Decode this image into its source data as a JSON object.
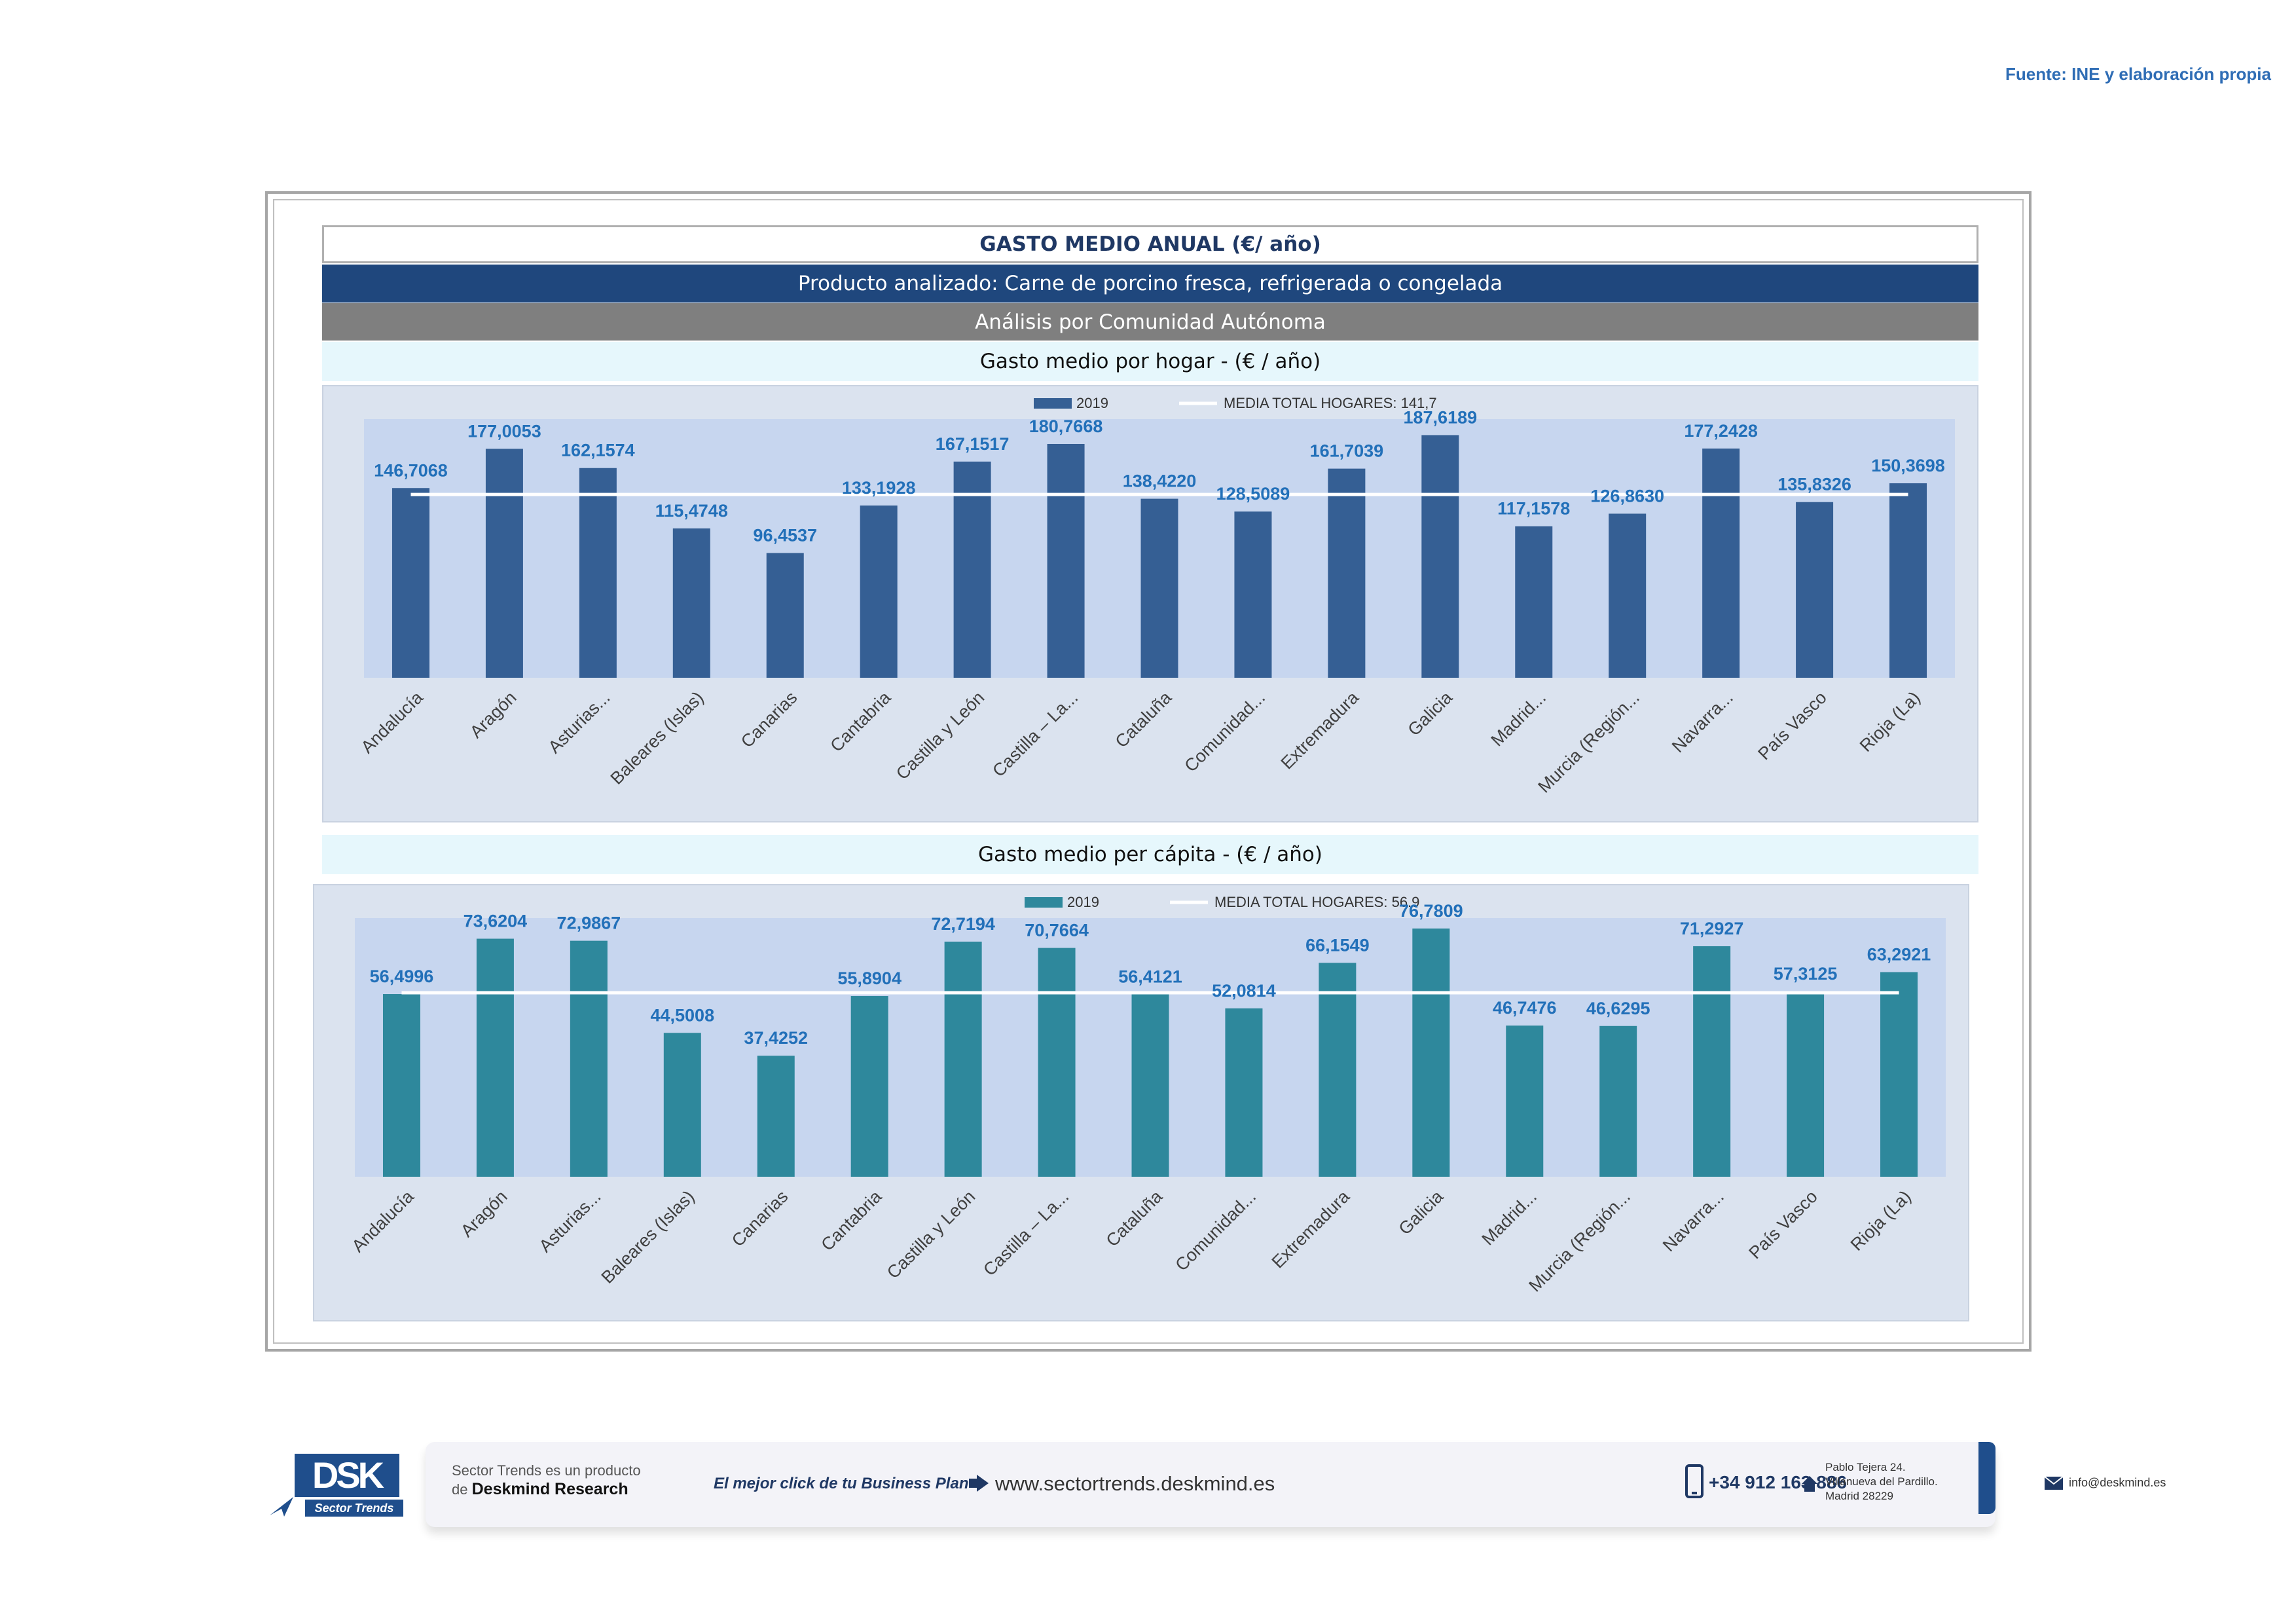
{
  "source": "Fuente: INE y elaboración propia",
  "header": {
    "title": "GASTO MEDIO ANUAL (€/ año)",
    "product": "Producto analizado: Carne de porcino fresca, refrigerada o congelada",
    "analysis": "Análisis por Comunidad Autónoma"
  },
  "colors": {
    "bar1": "#355f94",
    "bar2": "#2e889c",
    "plot": "#c7d6ef",
    "panel": "#dbe3ef",
    "label": "#2270b9"
  },
  "chart_data": [
    {
      "type": "bar",
      "title": "Gasto medio por hogar -  (€ / año)",
      "series_name": "2019",
      "avg_label": "MEDIA TOTAL  HOGARES:   141,7",
      "avg": 141.7,
      "ylim": [
        0,
        200
      ],
      "categories": [
        "Andalucía",
        "Aragón",
        "Asturias...",
        "Baleares (Islas)",
        "Canarias",
        "Cantabria",
        "Castilla y León",
        "Castilla – La...",
        "Cataluña",
        "Comunidad...",
        "Extremadura",
        "Galicia",
        "Madrid...",
        "Murcia (Región...",
        "Navarra...",
        "País Vasco",
        "Rioja (La)"
      ],
      "values": [
        146.7068,
        177.0053,
        162.1574,
        115.4748,
        96.4537,
        133.1928,
        167.1517,
        180.7668,
        138.422,
        128.5089,
        161.7039,
        187.6189,
        117.1578,
        126.863,
        177.2428,
        135.8326,
        150.3698
      ],
      "labels": [
        "146,7068",
        "177,0053",
        "162,1574",
        "115,4748",
        "96,4537",
        "133,1928",
        "167,1517",
        "180,7668",
        "138,4220",
        "128,5089",
        "161,7039",
        "187,6189",
        "117,1578",
        "126,8630",
        "177,2428",
        "135,8326",
        "150,3698"
      ]
    },
    {
      "type": "bar",
      "title": "Gasto medio per cápita -  (€ / año)",
      "series_name": "2019",
      "avg_label": "MEDIA TOTAL  HOGARES:   56.9",
      "avg": 56.9,
      "ylim": [
        0,
        80
      ],
      "categories": [
        "Andalucía",
        "Aragón",
        "Asturias...",
        "Baleares (Islas)",
        "Canarias",
        "Cantabria",
        "Castilla y León",
        "Castilla – La...",
        "Cataluña",
        "Comunidad...",
        "Extremadura",
        "Galicia",
        "Madrid...",
        "Murcia (Región...",
        "Navarra...",
        "País Vasco",
        "Rioja (La)"
      ],
      "values": [
        56.4996,
        73.6204,
        72.9867,
        44.5008,
        37.4252,
        55.8904,
        72.7194,
        70.7664,
        56.4121,
        52.0814,
        66.1549,
        76.7809,
        46.7476,
        46.6295,
        71.2927,
        57.3125,
        63.2921
      ],
      "labels": [
        "56,4996",
        "73,6204",
        "72,9867",
        "44,5008",
        "37,4252",
        "55,8904",
        "72,7194",
        "70,7664",
        "56,4121",
        "52,0814",
        "66,1549",
        "76,7809",
        "46,7476",
        "46,6295",
        "71,2927",
        "57,3125",
        "63,2921"
      ]
    }
  ],
  "footer": {
    "logo_text": "DSK",
    "logo_tag": "Sector Trends",
    "product_line1": "Sector Trends es un producto",
    "product_line2_prefix": "de",
    "product_line2_brand": "Deskmind Research",
    "slogan": "El mejor click de tu Business Plan",
    "website": "www.sectortrends.deskmind.es",
    "phone": "+34 912 163 886",
    "address_line1": "Pablo Tejera 24.",
    "address_line2": "Villanueva del Pardillo.",
    "address_line3": "Madrid 28229",
    "email": "info@deskmind.es",
    "icons": [
      "cursor-arrow-icon",
      "phone-icon",
      "home-icon",
      "mail-icon",
      "link-arrow-icon"
    ]
  }
}
